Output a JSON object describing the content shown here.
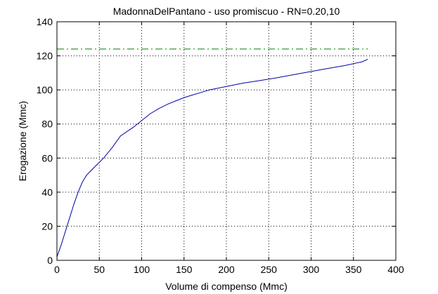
{
  "chart_data": {
    "type": "line",
    "title": "MadonnaDelPantano  -  uso promiscuo  -   RN=0.20,10",
    "xlabel": "Volume di compenso (Mmc)",
    "ylabel": "Erogazione (Mmc)",
    "xlim": [
      0,
      400
    ],
    "ylim": [
      0,
      140
    ],
    "xticks": [
      0,
      50,
      100,
      150,
      200,
      250,
      300,
      350,
      400
    ],
    "yticks": [
      0,
      20,
      40,
      60,
      80,
      100,
      120,
      140
    ],
    "grid": true,
    "colors": {
      "curve": "#0000a8",
      "reference": "#008000",
      "grid": "#000000"
    },
    "series": [
      {
        "style": "solid",
        "x": [
          0,
          5,
          10,
          15,
          20,
          25,
          30,
          35,
          45,
          55,
          65,
          75,
          90,
          100,
          110,
          120,
          130,
          140,
          150,
          160,
          170,
          180,
          200,
          220,
          240,
          260,
          280,
          300,
          320,
          340,
          360,
          367
        ],
        "values": [
          2,
          9,
          17,
          25,
          33,
          40,
          46,
          50,
          55,
          60,
          66,
          73,
          78,
          82,
          86,
          89,
          91.5,
          93.5,
          95.5,
          97,
          98.5,
          100,
          102,
          104,
          105.5,
          107.2,
          109,
          110.8,
          112.6,
          114.3,
          116.5,
          118
        ]
      },
      {
        "style": "dash-dot",
        "x": [
          0,
          367
        ],
        "values": [
          124,
          124
        ]
      }
    ]
  }
}
